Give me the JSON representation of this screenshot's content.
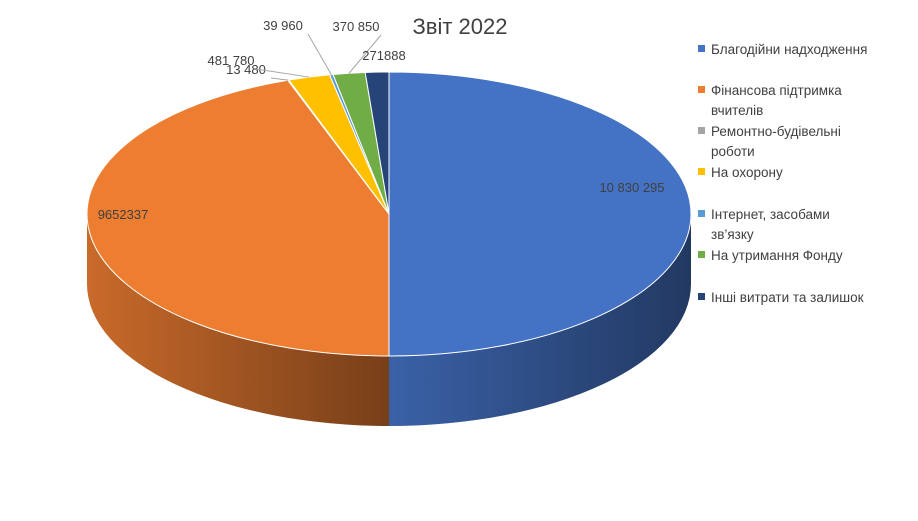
{
  "chart_data": {
    "type": "pie",
    "title": "Звіт 2022",
    "legend_position": "right",
    "slices": [
      {
        "name": "Благодійни надходження",
        "value": 10830295,
        "label": "10 830 295",
        "color": "#4472c4"
      },
      {
        "name": "Фінансова підтримка вчителів",
        "value": 9652337,
        "label": "9652337",
        "color": "#ed7d31"
      },
      {
        "name": "Ремонтно-будівельні роботи",
        "value": 13480,
        "label": "13 480",
        "color": "#a5a5a5"
      },
      {
        "name": "На охорону",
        "value": 481780,
        "label": "481 780",
        "color": "#ffc000"
      },
      {
        "name": "Інтернет, засобами зв’язку",
        "value": 39960,
        "label": "39 960",
        "color": "#5b9bd5"
      },
      {
        "name": "На утримання Фонду",
        "value": 370850,
        "label": "370 850",
        "color": "#70ad47"
      },
      {
        "name": "Інші витрати та залишок",
        "value": 271888,
        "label": "271888",
        "color": "#264478"
      }
    ]
  }
}
